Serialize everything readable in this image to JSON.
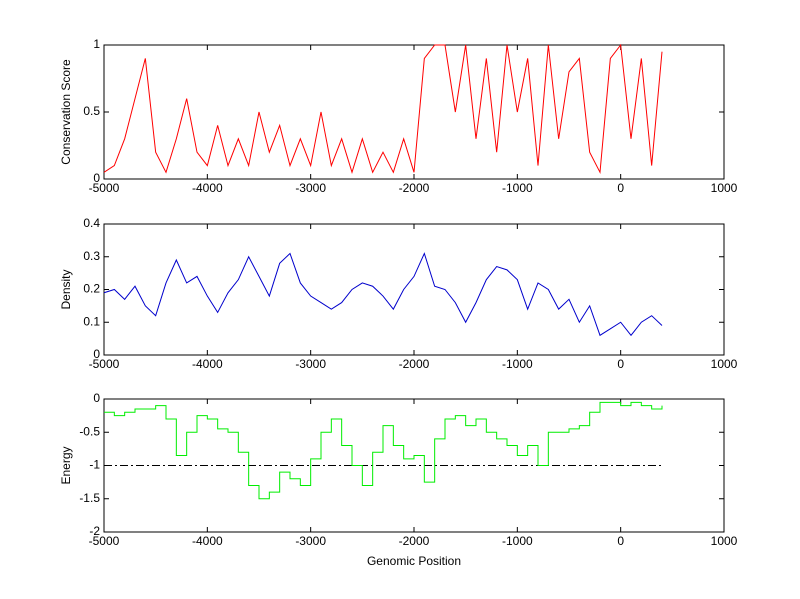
{
  "chart_data": [
    {
      "type": "line",
      "ylabel": "Conservation Score",
      "x": [
        -5000,
        -4900,
        -4800,
        -4700,
        -4600,
        -4500,
        -4400,
        -4300,
        -4200,
        -4100,
        -4000,
        -3900,
        -3800,
        -3700,
        -3600,
        -3500,
        -3400,
        -3300,
        -3200,
        -3100,
        -3000,
        -2900,
        -2800,
        -2700,
        -2600,
        -2500,
        -2400,
        -2300,
        -2200,
        -2100,
        -2000,
        -1900,
        -1800,
        -1700,
        -1600,
        -1500,
        -1400,
        -1300,
        -1200,
        -1100,
        -1000,
        -900,
        -800,
        -700,
        -600,
        -500,
        -400,
        -300,
        -200,
        -100,
        0,
        100,
        200,
        300,
        400
      ],
      "series": [
        {
          "color": "#ff0000",
          "values": [
            0.05,
            0.1,
            0.3,
            0.6,
            0.9,
            0.2,
            0.05,
            0.3,
            0.6,
            0.2,
            0.1,
            0.4,
            0.1,
            0.3,
            0.1,
            0.5,
            0.2,
            0.4,
            0.1,
            0.3,
            0.1,
            0.5,
            0.1,
            0.3,
            0.05,
            0.3,
            0.05,
            0.2,
            0.05,
            0.3,
            0.05,
            0.9,
            1,
            1,
            0.5,
            1,
            0.3,
            0.9,
            0.2,
            1,
            0.5,
            0.9,
            0.1,
            1,
            0.3,
            0.8,
            0.9,
            0.2,
            0.05,
            0.9,
            1,
            0.3,
            0.9,
            0.1,
            0.95
          ]
        }
      ],
      "xlim": [
        -5000,
        1000
      ],
      "xticks": [
        -5000,
        -4000,
        -3000,
        -2000,
        -1000,
        0,
        1000
      ],
      "ylim": [
        0,
        1
      ],
      "yticks": [
        0,
        0.5,
        1
      ]
    },
    {
      "type": "line",
      "ylabel": "Density",
      "x": [
        -5000,
        -4900,
        -4800,
        -4700,
        -4600,
        -4500,
        -4400,
        -4300,
        -4200,
        -4100,
        -4000,
        -3900,
        -3800,
        -3700,
        -3600,
        -3500,
        -3400,
        -3300,
        -3200,
        -3100,
        -3000,
        -2900,
        -2800,
        -2700,
        -2600,
        -2500,
        -2400,
        -2300,
        -2200,
        -2100,
        -2000,
        -1900,
        -1800,
        -1700,
        -1600,
        -1500,
        -1400,
        -1300,
        -1200,
        -1100,
        -1000,
        -900,
        -800,
        -700,
        -600,
        -500,
        -400,
        -300,
        -200,
        -100,
        0,
        100,
        200,
        300,
        400
      ],
      "series": [
        {
          "color": "#0000cc",
          "values": [
            0.19,
            0.2,
            0.17,
            0.21,
            0.15,
            0.12,
            0.22,
            0.29,
            0.22,
            0.24,
            0.18,
            0.13,
            0.19,
            0.23,
            0.3,
            0.24,
            0.18,
            0.28,
            0.31,
            0.22,
            0.18,
            0.16,
            0.14,
            0.16,
            0.2,
            0.22,
            0.21,
            0.18,
            0.14,
            0.2,
            0.24,
            0.31,
            0.21,
            0.2,
            0.16,
            0.1,
            0.16,
            0.23,
            0.27,
            0.26,
            0.23,
            0.14,
            0.22,
            0.2,
            0.14,
            0.17,
            0.1,
            0.15,
            0.06,
            0.08,
            0.1,
            0.06,
            0.1,
            0.12,
            0.09
          ]
        }
      ],
      "xlim": [
        -5000,
        1000
      ],
      "xticks": [
        -5000,
        -4000,
        -3000,
        -2000,
        -1000,
        0,
        1000
      ],
      "ylim": [
        0,
        0.4
      ],
      "yticks": [
        0,
        0.1,
        0.2,
        0.3,
        0.4
      ]
    },
    {
      "type": "step",
      "ylabel": "Energy",
      "xlabel": "Genomic Position",
      "x": [
        -5000,
        -4900,
        -4800,
        -4700,
        -4600,
        -4500,
        -4400,
        -4300,
        -4200,
        -4100,
        -4000,
        -3900,
        -3800,
        -3700,
        -3600,
        -3500,
        -3400,
        -3300,
        -3200,
        -3100,
        -3000,
        -2900,
        -2800,
        -2700,
        -2600,
        -2500,
        -2400,
        -2300,
        -2200,
        -2100,
        -2000,
        -1900,
        -1800,
        -1700,
        -1600,
        -1500,
        -1400,
        -1300,
        -1200,
        -1100,
        -1000,
        -900,
        -800,
        -700,
        -600,
        -500,
        -400,
        -300,
        -200,
        -100,
        0,
        100,
        200,
        300,
        400
      ],
      "series": [
        {
          "color": "#00ee00",
          "values": [
            -0.2,
            -0.25,
            -0.2,
            -0.15,
            -0.15,
            -0.1,
            -0.3,
            -0.85,
            -0.5,
            -0.25,
            -0.3,
            -0.45,
            -0.5,
            -0.8,
            -1.3,
            -1.5,
            -1.4,
            -1.1,
            -1.2,
            -1.3,
            -0.9,
            -0.5,
            -0.3,
            -0.7,
            -1.0,
            -1.3,
            -0.8,
            -0.4,
            -0.7,
            -0.9,
            -0.85,
            -1.25,
            -0.6,
            -0.3,
            -0.25,
            -0.4,
            -0.3,
            -0.5,
            -0.6,
            -0.7,
            -0.85,
            -0.7,
            -1.0,
            -0.5,
            -0.5,
            -0.45,
            -0.4,
            -0.2,
            -0.05,
            -0.05,
            -0.1,
            -0.05,
            -0.1,
            -0.15,
            -0.1
          ]
        }
      ],
      "hline": {
        "y": -1,
        "x": [
          -5000,
          400
        ],
        "color": "#000000"
      },
      "xlim": [
        -5000,
        1000
      ],
      "xticks": [
        -5000,
        -4000,
        -3000,
        -2000,
        -1000,
        0,
        1000
      ],
      "ylim": [
        -2,
        0
      ],
      "yticks": [
        -2,
        -1.5,
        -1,
        -0.5,
        0
      ]
    }
  ]
}
